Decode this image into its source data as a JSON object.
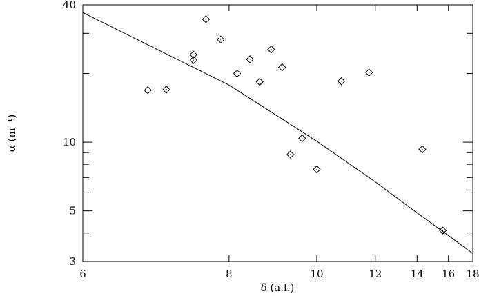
{
  "chart_data": {
    "type": "scatter",
    "title": "",
    "xlabel": "δ (a.l.)",
    "ylabel": "α (m⁻¹)",
    "xscale": "reciprocal",
    "yscale": "log",
    "xlim": [
      6,
      18
    ],
    "ylim": [
      3,
      40
    ],
    "x_ticks": [
      6,
      8,
      10,
      12,
      14,
      16,
      18
    ],
    "y_ticks": [
      3,
      5,
      10,
      40
    ],
    "y_minor_ticks": [
      4,
      6,
      7,
      8,
      9,
      20,
      30
    ],
    "grid": false,
    "legend": "none",
    "marker": "diamond",
    "series": [
      {
        "kind": "points",
        "points": [
          {
            "x": 6.75,
            "y": 16.9
          },
          {
            "x": 7.0,
            "y": 17.0
          },
          {
            "x": 7.4,
            "y": 24.2
          },
          {
            "x": 7.4,
            "y": 22.9
          },
          {
            "x": 7.6,
            "y": 34.6
          },
          {
            "x": 7.85,
            "y": 28.2
          },
          {
            "x": 8.15,
            "y": 20.0
          },
          {
            "x": 8.4,
            "y": 23.1
          },
          {
            "x": 8.6,
            "y": 18.4
          },
          {
            "x": 8.85,
            "y": 25.5
          },
          {
            "x": 9.1,
            "y": 21.3
          },
          {
            "x": 9.3,
            "y": 8.83
          },
          {
            "x": 9.6,
            "y": 10.4
          },
          {
            "x": 10.0,
            "y": 7.6
          },
          {
            "x": 10.75,
            "y": 18.5
          },
          {
            "x": 11.75,
            "y": 20.2
          },
          {
            "x": 14.3,
            "y": 9.3
          },
          {
            "x": 15.6,
            "y": 4.1
          }
        ]
      },
      {
        "kind": "fit-line",
        "points": [
          {
            "x": 6.0,
            "y": 37.0
          },
          {
            "x": 8.0,
            "y": 17.8
          },
          {
            "x": 10.0,
            "y": 10.1
          },
          {
            "x": 12.0,
            "y": 6.7
          },
          {
            "x": 14.0,
            "y": 4.9
          },
          {
            "x": 16.0,
            "y": 3.9
          },
          {
            "x": 18.0,
            "y": 3.25
          }
        ]
      }
    ]
  }
}
